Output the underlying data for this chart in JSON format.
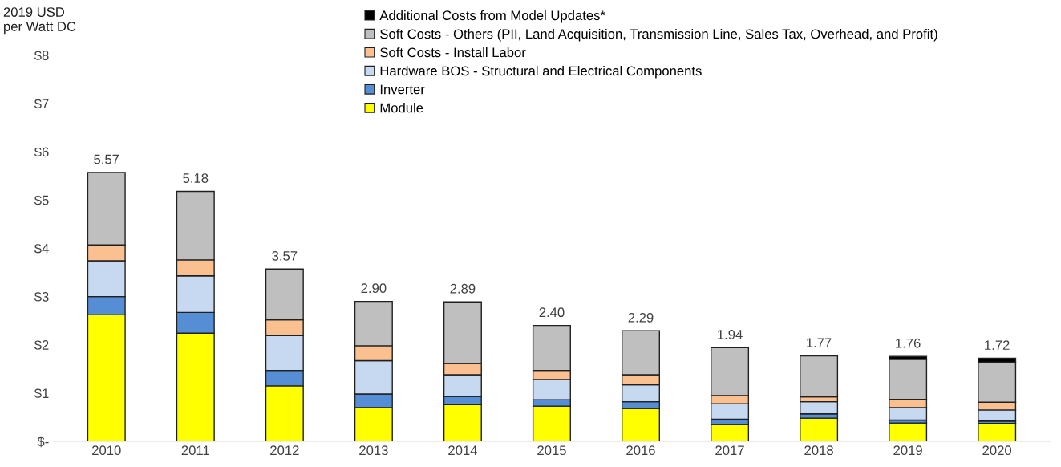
{
  "chart_data": {
    "type": "bar",
    "stacked": true,
    "ylabel": "2019 USD\nper Watt DC",
    "categories": [
      "2010",
      "2011",
      "2012",
      "2013",
      "2014",
      "2015",
      "2016",
      "2017",
      "2018",
      "2019",
      "2020"
    ],
    "series": [
      {
        "name": "Module",
        "color": "#ffff00",
        "values": [
          2.62,
          2.24,
          1.15,
          0.7,
          0.76,
          0.73,
          0.68,
          0.35,
          0.48,
          0.38,
          0.37
        ]
      },
      {
        "name": "Inverter",
        "color": "#558ed5",
        "values": [
          0.38,
          0.43,
          0.32,
          0.28,
          0.17,
          0.13,
          0.14,
          0.11,
          0.09,
          0.06,
          0.05
        ]
      },
      {
        "name": "Hardware BOS - Structural and Electrical Components",
        "color": "#c6d9f1",
        "values": [
          0.74,
          0.76,
          0.72,
          0.69,
          0.45,
          0.42,
          0.35,
          0.32,
          0.25,
          0.26,
          0.23
        ]
      },
      {
        "name": "Soft Costs - Install Labor",
        "color": "#fac090",
        "values": [
          0.33,
          0.33,
          0.33,
          0.31,
          0.23,
          0.19,
          0.21,
          0.17,
          0.1,
          0.17,
          0.16
        ]
      },
      {
        "name": "Soft Costs - Others (PII, Land Acquisition, Transmission Line, Sales Tax, Overhead, and Profit)",
        "color": "#bfbfbf",
        "values": [
          1.5,
          1.42,
          1.05,
          0.92,
          1.28,
          0.93,
          0.91,
          0.99,
          0.85,
          0.83,
          0.83
        ]
      },
      {
        "name": "Additional Costs from Model Updates*",
        "color": "#000000",
        "values": [
          null,
          null,
          null,
          null,
          null,
          null,
          null,
          null,
          null,
          0.06,
          0.08
        ]
      }
    ],
    "totals": [
      "5.57",
      "5.18",
      "3.57",
      "2.90",
      "2.89",
      "2.40",
      "2.29",
      "1.94",
      "1.77",
      "1.76",
      "1.72"
    ],
    "ylim": [
      0,
      9
    ],
    "yticks": [
      {
        "value": 0,
        "label": "$-"
      },
      {
        "value": 1,
        "label": "$1"
      },
      {
        "value": 2,
        "label": "$2"
      },
      {
        "value": 3,
        "label": "$3"
      },
      {
        "value": 4,
        "label": "$4"
      },
      {
        "value": 5,
        "label": "$5"
      },
      {
        "value": 6,
        "label": "$6"
      },
      {
        "value": 7,
        "label": "$7"
      },
      {
        "value": 8,
        "label": "$8"
      }
    ],
    "legend": "top",
    "grid": false
  }
}
